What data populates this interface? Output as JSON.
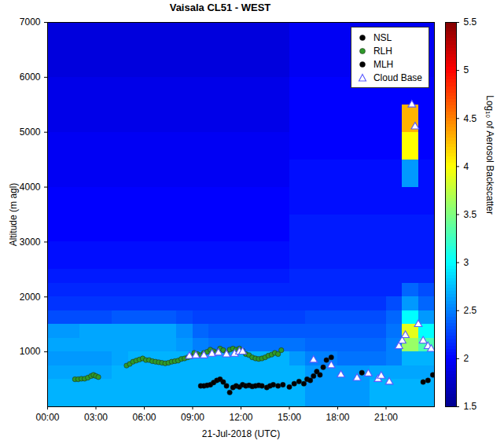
{
  "chart_data": {
    "type": "heatmap",
    "title": "Vaisala CL51 - WEST",
    "xlabel": "21-Jul-2018 (UTC)",
    "ylabel": "Altitude (m agl)",
    "xlim": [
      0,
      24
    ],
    "xticks": [
      {
        "value": 0,
        "label": "00:00"
      },
      {
        "value": 3,
        "label": "03:00"
      },
      {
        "value": 6,
        "label": "06:00"
      },
      {
        "value": 9,
        "label": "09:00"
      },
      {
        "value": 12,
        "label": "12:00"
      },
      {
        "value": 15,
        "label": "15:00"
      },
      {
        "value": 18,
        "label": "18:00"
      },
      {
        "value": 21,
        "label": "21:00"
      }
    ],
    "ylim": [
      0,
      7000
    ],
    "yticks": [
      1000,
      2000,
      3000,
      4000,
      5000,
      6000,
      7000
    ],
    "legend": "upper right",
    "heatmap": {
      "x_edges": [
        0,
        1,
        2,
        3,
        4,
        5,
        6,
        7,
        8,
        9,
        10,
        11,
        12,
        13,
        14,
        15,
        16,
        17,
        18,
        19,
        20,
        21,
        22,
        23,
        24
      ],
      "y_edges": [
        0,
        250,
        500,
        750,
        1000,
        1250,
        1500,
        1750,
        2000,
        2250,
        2500,
        3000,
        3500,
        4000,
        4500,
        5000,
        5500,
        6000,
        6500,
        7000
      ],
      "values": [
        [
          2.7,
          2.7,
          2.7,
          2.7,
          2.7,
          2.7,
          2.7,
          2.7,
          2.7,
          2.7,
          2.7,
          2.7,
          2.7,
          2.7,
          2.7,
          2.7,
          2.6,
          2.6,
          2.6,
          2.6,
          2.7,
          2.7,
          2.7,
          2.7
        ],
        [
          2.7,
          2.7,
          2.7,
          2.7,
          2.7,
          2.7,
          2.7,
          2.7,
          2.7,
          2.7,
          2.7,
          2.7,
          2.7,
          2.7,
          2.7,
          2.7,
          2.6,
          2.6,
          2.6,
          2.6,
          2.7,
          2.7,
          2.7,
          2.7
        ],
        [
          2.65,
          2.65,
          2.65,
          2.65,
          2.7,
          2.7,
          2.7,
          2.7,
          2.7,
          2.7,
          2.7,
          2.7,
          2.7,
          2.7,
          2.7,
          2.7,
          2.6,
          2.6,
          2.6,
          2.6,
          2.65,
          2.65,
          2.65,
          2.65
        ],
        [
          2.6,
          2.6,
          2.6,
          2.6,
          2.65,
          2.7,
          2.7,
          2.7,
          2.7,
          2.7,
          2.7,
          2.7,
          2.7,
          2.7,
          2.7,
          2.6,
          2.5,
          2.5,
          2.45,
          2.45,
          2.45,
          2.5,
          2.7,
          2.7
        ],
        [
          2.65,
          2.65,
          2.65,
          2.65,
          2.65,
          2.65,
          2.65,
          2.65,
          2.6,
          2.5,
          2.45,
          2.45,
          2.45,
          2.45,
          2.45,
          2.45,
          2.4,
          2.4,
          2.4,
          2.4,
          2.4,
          2.5,
          3.6,
          3.3
        ],
        [
          2.6,
          2.6,
          2.65,
          2.65,
          2.65,
          2.65,
          2.65,
          2.65,
          2.55,
          2.4,
          2.35,
          2.35,
          2.35,
          2.35,
          2.35,
          2.35,
          2.35,
          2.35,
          2.35,
          2.35,
          2.35,
          2.45,
          3.9,
          3.0
        ],
        [
          2.3,
          2.3,
          2.3,
          2.3,
          2.35,
          2.35,
          2.35,
          2.35,
          2.3,
          2.25,
          2.25,
          2.25,
          2.25,
          2.25,
          2.25,
          2.25,
          2.3,
          2.3,
          2.3,
          2.3,
          2.3,
          2.4,
          3.0,
          2.6
        ],
        [
          2.2,
          2.2,
          2.2,
          2.2,
          2.2,
          2.2,
          2.2,
          2.2,
          2.2,
          2.2,
          2.2,
          2.2,
          2.2,
          2.2,
          2.2,
          2.2,
          2.2,
          2.2,
          2.2,
          2.2,
          2.2,
          2.3,
          2.6,
          2.4
        ],
        [
          2.15,
          2.15,
          2.15,
          2.15,
          2.15,
          2.15,
          2.15,
          2.15,
          2.15,
          2.15,
          2.15,
          2.15,
          2.15,
          2.15,
          2.15,
          2.15,
          2.15,
          2.15,
          2.15,
          2.15,
          2.15,
          2.15,
          2.4,
          2.3
        ],
        [
          2.1,
          2.1,
          2.1,
          2.1,
          2.1,
          2.1,
          2.1,
          2.1,
          2.1,
          2.1,
          2.1,
          2.1,
          2.1,
          2.1,
          2.1,
          2.15,
          2.15,
          2.15,
          2.15,
          2.15,
          2.15,
          2.15,
          2.15,
          2.15
        ],
        [
          2.05,
          2.05,
          2.05,
          2.05,
          2.05,
          2.05,
          2.05,
          2.05,
          2.05,
          2.05,
          2.05,
          2.05,
          2.05,
          2.05,
          2.05,
          2.1,
          2.1,
          2.1,
          2.1,
          2.1,
          2.1,
          2.1,
          2.1,
          2.1
        ],
        [
          2.0,
          2.0,
          2.0,
          2.0,
          2.0,
          2.0,
          2.0,
          2.0,
          2.0,
          2.0,
          2.0,
          2.0,
          2.0,
          2.0,
          2.0,
          2.1,
          2.1,
          2.1,
          2.1,
          2.1,
          2.1,
          2.1,
          2.1,
          2.1
        ],
        [
          2.0,
          2.0,
          2.0,
          2.0,
          2.0,
          2.0,
          2.0,
          2.0,
          2.0,
          2.0,
          2.0,
          2.0,
          2.0,
          2.0,
          2.0,
          2.05,
          2.05,
          2.05,
          2.05,
          2.05,
          2.05,
          2.05,
          2.05,
          2.05
        ],
        [
          1.95,
          1.95,
          1.95,
          1.95,
          1.95,
          1.95,
          1.95,
          1.95,
          1.95,
          1.95,
          1.95,
          1.95,
          1.95,
          1.95,
          1.95,
          2.05,
          2.05,
          2.05,
          2.05,
          2.05,
          2.05,
          2.05,
          2.6,
          2.05
        ],
        [
          1.95,
          1.95,
          1.95,
          1.95,
          1.95,
          1.95,
          1.95,
          1.95,
          1.95,
          1.95,
          1.95,
          1.95,
          1.95,
          1.95,
          1.95,
          2.0,
          2.0,
          2.0,
          2.0,
          2.0,
          2.0,
          2.0,
          4.0,
          2.0
        ],
        [
          1.9,
          1.9,
          1.9,
          1.9,
          1.9,
          1.9,
          1.9,
          1.9,
          1.9,
          1.9,
          1.9,
          1.9,
          1.9,
          1.9,
          1.9,
          2.0,
          2.0,
          2.0,
          2.0,
          2.0,
          2.0,
          2.0,
          4.3,
          2.0
        ],
        [
          1.9,
          1.9,
          1.9,
          1.9,
          1.9,
          1.9,
          1.9,
          1.9,
          1.9,
          1.9,
          1.9,
          1.9,
          1.9,
          1.9,
          1.9,
          2.0,
          2.0,
          2.0,
          2.0,
          2.0,
          2.0,
          2.0,
          2.0,
          2.0
        ],
        [
          1.85,
          1.85,
          1.85,
          1.85,
          1.85,
          1.85,
          1.85,
          1.85,
          1.85,
          1.85,
          1.85,
          1.85,
          1.85,
          1.85,
          1.85,
          1.95,
          1.95,
          1.95,
          1.95,
          1.95,
          1.95,
          1.95,
          1.95,
          1.95
        ],
        [
          1.85,
          1.85,
          1.85,
          1.85,
          1.85,
          1.85,
          1.85,
          1.85,
          1.85,
          1.85,
          1.85,
          1.85,
          1.85,
          1.85,
          1.85,
          1.95,
          1.95,
          1.95,
          1.95,
          1.95,
          1.95,
          1.95,
          1.95,
          1.95
        ]
      ]
    },
    "colorbar": {
      "label": "Log₁₀ of Aerosol Backscatter",
      "range": [
        1.5,
        5.5
      ],
      "ticks": [
        1.5,
        2,
        2.5,
        3,
        3.5,
        4,
        4.5,
        5,
        5.5
      ]
    },
    "series": [
      {
        "name": "NSL",
        "type": "scatter",
        "marker": "circle",
        "color": "#000000",
        "x": [
          19.5,
          23.3,
          23.6,
          23.9
        ],
        "values": [
          620,
          450,
          480,
          580
        ]
      },
      {
        "name": "RLH",
        "type": "scatter",
        "marker": "circle",
        "color": "#2e9a2a",
        "x": [
          1.7,
          1.9,
          2.1,
          2.3,
          2.5,
          2.7,
          2.85,
          3.0,
          3.15,
          4.9,
          5.1,
          5.3,
          5.5,
          5.7,
          5.9,
          6.1,
          6.3,
          6.5,
          6.7,
          6.9,
          7.1,
          7.3,
          7.5,
          7.7,
          7.9,
          8.1,
          8.3,
          8.5,
          8.7,
          8.9,
          9.1,
          9.3,
          9.5,
          9.7,
          9.9,
          10.1,
          10.3,
          10.5,
          10.7,
          10.9,
          11.1,
          11.3,
          11.5,
          11.7,
          11.9,
          12.1,
          12.3,
          12.5,
          12.7,
          12.9,
          13.1,
          13.3,
          13.5,
          13.7,
          13.9,
          14.1,
          14.3,
          14.5
        ],
        "values": [
          500,
          500,
          510,
          510,
          530,
          560,
          580,
          560,
          540,
          750,
          780,
          820,
          840,
          860,
          880,
          850,
          850,
          830,
          820,
          810,
          800,
          790,
          800,
          820,
          830,
          840,
          870,
          880,
          900,
          920,
          980,
          960,
          940,
          980,
          1000,
          1040,
          1010,
          990,
          1060,
          1030,
          980,
          1040,
          1060,
          1040,
          1060,
          1020,
          960,
          940,
          900,
          880,
          870,
          880,
          900,
          930,
          950,
          980,
          960,
          1030
        ]
      },
      {
        "name": "MLH",
        "type": "scatter",
        "marker": "circle",
        "color": "#000000",
        "x": [
          9.5,
          9.7,
          9.9,
          10.1,
          10.3,
          10.5,
          10.7,
          10.9,
          11.1,
          11.3,
          11.5,
          11.7,
          11.9,
          12.1,
          12.3,
          12.5,
          12.7,
          12.9,
          13.1,
          13.3,
          13.6,
          13.8,
          14.0,
          14.3,
          14.6,
          15.0,
          15.3,
          15.6,
          15.9,
          16.1,
          16.3,
          16.5,
          16.7,
          16.9,
          17.1,
          17.3,
          17.6
        ],
        "values": [
          380,
          380,
          390,
          400,
          440,
          480,
          500,
          450,
          380,
          260,
          350,
          380,
          360,
          400,
          380,
          390,
          370,
          380,
          390,
          380,
          350,
          380,
          400,
          380,
          400,
          360,
          420,
          460,
          420,
          500,
          480,
          560,
          640,
          580,
          720,
          850,
          900
        ]
      },
      {
        "name": "Cloud Base",
        "type": "scatter",
        "marker": "triangle",
        "color": "#5a5aff",
        "x": [
          8.8,
          9.2,
          9.7,
          10.2,
          10.6,
          11.1,
          11.6,
          11.9,
          12.1,
          16.5,
          17.6,
          18.2,
          19.2,
          19.9,
          20.5,
          20.7,
          21.2,
          21.8,
          22.0,
          22.2,
          22.6,
          22.8,
          23.0,
          23.3,
          23.6,
          23.8
        ],
        "values": [
          920,
          930,
          930,
          960,
          980,
          950,
          960,
          1000,
          1000,
          850,
          750,
          580,
          520,
          600,
          500,
          560,
          450,
          1100,
          1200,
          1300,
          5500,
          5100,
          1500,
          1200,
          1100,
          1050
        ]
      }
    ]
  }
}
